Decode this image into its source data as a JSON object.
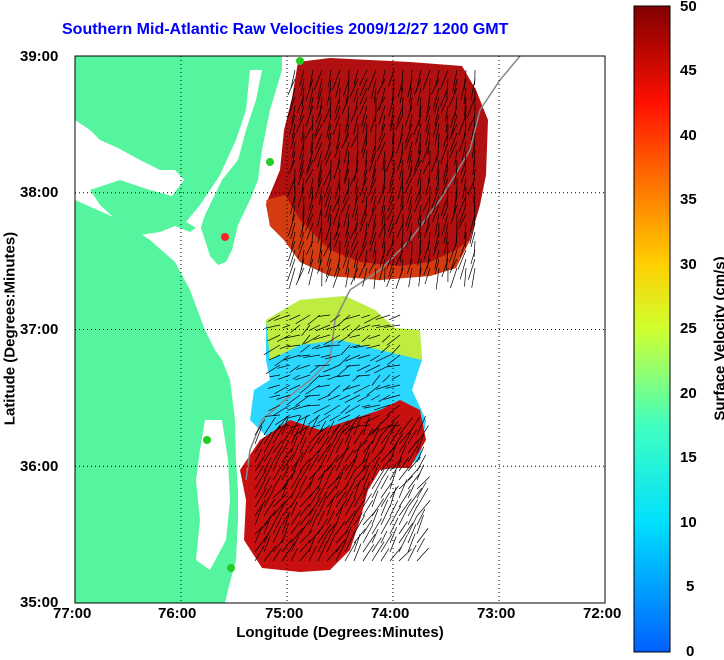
{
  "chart_data": {
    "type": "heatmap",
    "title": "Southern Mid-Atlantic Raw Velocities 2009/12/27 1200 GMT",
    "xlabel": "Longitude (Degrees:Minutes)",
    "ylabel": "Latitude (Degrees:Minutes)",
    "colorbar_label": "Surface Velocity (cm/s)",
    "x_ticks": [
      "77:00",
      "76:00",
      "75:00",
      "74:00",
      "73:00",
      "72:00"
    ],
    "y_ticks": [
      "39:00",
      "38:00",
      "37:00",
      "36:00",
      "35:00"
    ],
    "colorbar_ticks": [
      "50",
      "45",
      "40",
      "35",
      "30",
      "25",
      "20",
      "15",
      "10",
      "5",
      "0"
    ],
    "xlim": [
      -77,
      -72
    ],
    "ylim": [
      35,
      39
    ],
    "clim": [
      0,
      50
    ],
    "grid": true,
    "colors": {
      "land": "#55f5a0",
      "title": "#0000ff",
      "station_green": "#22cc22",
      "station_red": "#ff2222"
    },
    "regions": [
      {
        "name": "northern patch",
        "center_lon": -74.1,
        "center_lat": 38.1,
        "speed_cm_s": 47
      },
      {
        "name": "southern patch north part",
        "center_lon": -74.6,
        "center_lat": 36.6,
        "speed_cm_s": 14
      },
      {
        "name": "southern patch south part",
        "center_lon": -74.8,
        "center_lat": 35.8,
        "speed_cm_s": 44
      }
    ]
  }
}
